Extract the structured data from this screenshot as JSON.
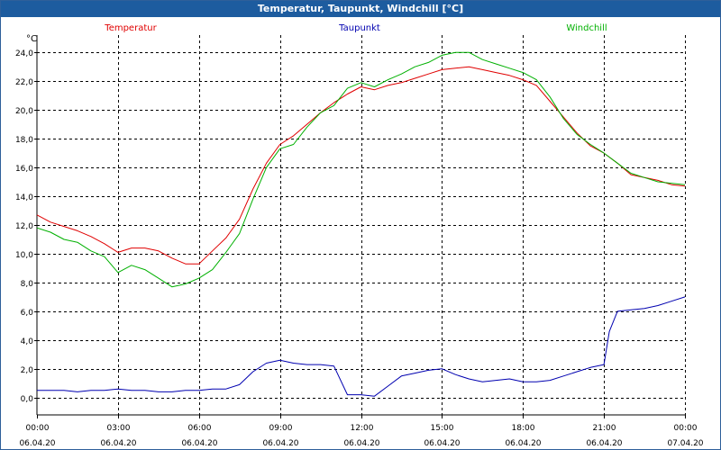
{
  "window": {
    "title": "Temperatur, Taupunkt, Windchill [°C]"
  },
  "chart_data": {
    "type": "line",
    "title": "Temperatur, Taupunkt, Windchill [°C]",
    "ylabel": "°C",
    "xlabel": "",
    "ylim": [
      -1.2,
      25.2
    ],
    "xlim": [
      0,
      24
    ],
    "grid": true,
    "y_ticks": [
      0,
      2,
      4,
      6,
      8,
      10,
      12,
      14,
      16,
      18,
      20,
      22,
      24
    ],
    "y_tick_labels": [
      "0,0",
      "2,0",
      "4,0",
      "6,0",
      "8,0",
      "10,0",
      "12,0",
      "14,0",
      "16,0",
      "18,0",
      "20,0",
      "22,0",
      "24,0"
    ],
    "x_ticks": [
      0,
      3,
      6,
      9,
      12,
      15,
      18,
      21,
      24
    ],
    "x_tick_labels": [
      {
        "time": "00:00",
        "date": "06.04.20"
      },
      {
        "time": "03:00",
        "date": "06.04.20"
      },
      {
        "time": "06:00",
        "date": "06.04.20"
      },
      {
        "time": "09:00",
        "date": "06.04.20"
      },
      {
        "time": "12:00",
        "date": "06.04.20"
      },
      {
        "time": "15:00",
        "date": "06.04.20"
      },
      {
        "time": "18:00",
        "date": "06.04.20"
      },
      {
        "time": "21:00",
        "date": "06.04.20"
      },
      {
        "time": "00:00",
        "date": "07.04.20"
      }
    ],
    "legend": [
      "Temperatur",
      "Taupunkt",
      "Windchill"
    ],
    "colors": {
      "Temperatur": "#e00000",
      "Taupunkt": "#0000b0",
      "Windchill": "#00b000",
      "grid": "#000000",
      "axis": "#000000"
    },
    "series": [
      {
        "name": "Temperatur",
        "x": [
          0,
          0.5,
          1,
          1.5,
          2,
          2.5,
          3,
          3.5,
          4,
          4.5,
          5,
          5.5,
          6,
          6.5,
          7,
          7.5,
          8,
          8.5,
          9,
          9.5,
          10,
          10.5,
          11,
          11.5,
          12,
          12.5,
          13,
          13.5,
          14,
          14.5,
          15,
          15.5,
          16,
          16.5,
          17,
          17.5,
          18,
          18.5,
          19,
          19.5,
          20,
          20.5,
          21,
          21.5,
          22,
          22.5,
          23,
          23.5,
          24
        ],
        "values": [
          12.7,
          12.2,
          11.9,
          11.6,
          11.2,
          10.7,
          10.1,
          10.4,
          10.4,
          10.2,
          9.7,
          9.3,
          9.3,
          10.2,
          11.1,
          12.4,
          14.5,
          16.3,
          17.6,
          18.2,
          19.0,
          19.8,
          20.5,
          21.1,
          21.6,
          21.4,
          21.7,
          21.9,
          22.2,
          22.5,
          22.8,
          22.9,
          23.0,
          22.8,
          22.6,
          22.4,
          22.1,
          21.7,
          20.6,
          19.5,
          18.4,
          17.5,
          17.0,
          16.3,
          15.5,
          15.3,
          15.1,
          14.8,
          14.7
        ]
      },
      {
        "name": "Taupunkt",
        "x": [
          0,
          0.5,
          1,
          1.5,
          2,
          2.5,
          3,
          3.5,
          4,
          4.5,
          5,
          5.5,
          6,
          6.5,
          7,
          7.5,
          8,
          8.5,
          9,
          9.5,
          10,
          10.5,
          11,
          11.5,
          12,
          12.5,
          13,
          13.5,
          14,
          14.5,
          15,
          15.5,
          16,
          16.5,
          17,
          17.5,
          18,
          18.5,
          19,
          19.5,
          20,
          20.5,
          21,
          21.2,
          21.5,
          22,
          22.5,
          23,
          23.5,
          24
        ],
        "values": [
          0.5,
          0.5,
          0.5,
          0.4,
          0.5,
          0.5,
          0.6,
          0.5,
          0.5,
          0.4,
          0.4,
          0.5,
          0.5,
          0.6,
          0.6,
          0.9,
          1.8,
          2.4,
          2.6,
          2.4,
          2.3,
          2.3,
          2.2,
          0.2,
          0.2,
          0.1,
          0.8,
          1.5,
          1.7,
          1.9,
          2.0,
          1.6,
          1.3,
          1.1,
          1.2,
          1.3,
          1.1,
          1.1,
          1.2,
          1.5,
          1.8,
          2.1,
          2.3,
          4.6,
          6.0,
          6.1,
          6.2,
          6.4,
          6.7,
          7.0
        ]
      },
      {
        "name": "Windchill",
        "x": [
          0,
          0.5,
          1,
          1.5,
          2,
          2.5,
          3,
          3.5,
          4,
          4.5,
          5,
          5.5,
          6,
          6.5,
          7,
          7.5,
          8,
          8.5,
          9,
          9.5,
          10,
          10.5,
          11,
          11.5,
          12,
          12.5,
          13,
          13.5,
          14,
          14.5,
          15,
          15.5,
          16,
          16.5,
          17,
          17.5,
          18,
          18.5,
          19,
          19.5,
          20,
          20.5,
          21,
          21.5,
          22,
          22.5,
          23,
          23.5,
          24
        ],
        "values": [
          11.8,
          11.5,
          11.0,
          10.8,
          10.2,
          9.8,
          8.7,
          9.2,
          8.9,
          8.3,
          7.7,
          7.9,
          8.3,
          8.9,
          10.1,
          11.4,
          13.8,
          16.0,
          17.3,
          17.6,
          18.8,
          19.8,
          20.3,
          21.5,
          21.9,
          21.6,
          22.1,
          22.5,
          23.0,
          23.3,
          23.8,
          24.0,
          24.0,
          23.5,
          23.2,
          22.9,
          22.6,
          22.1,
          20.9,
          19.4,
          18.3,
          17.6,
          17.0,
          16.3,
          15.6,
          15.3,
          15.0,
          14.9,
          14.8
        ]
      }
    ]
  }
}
